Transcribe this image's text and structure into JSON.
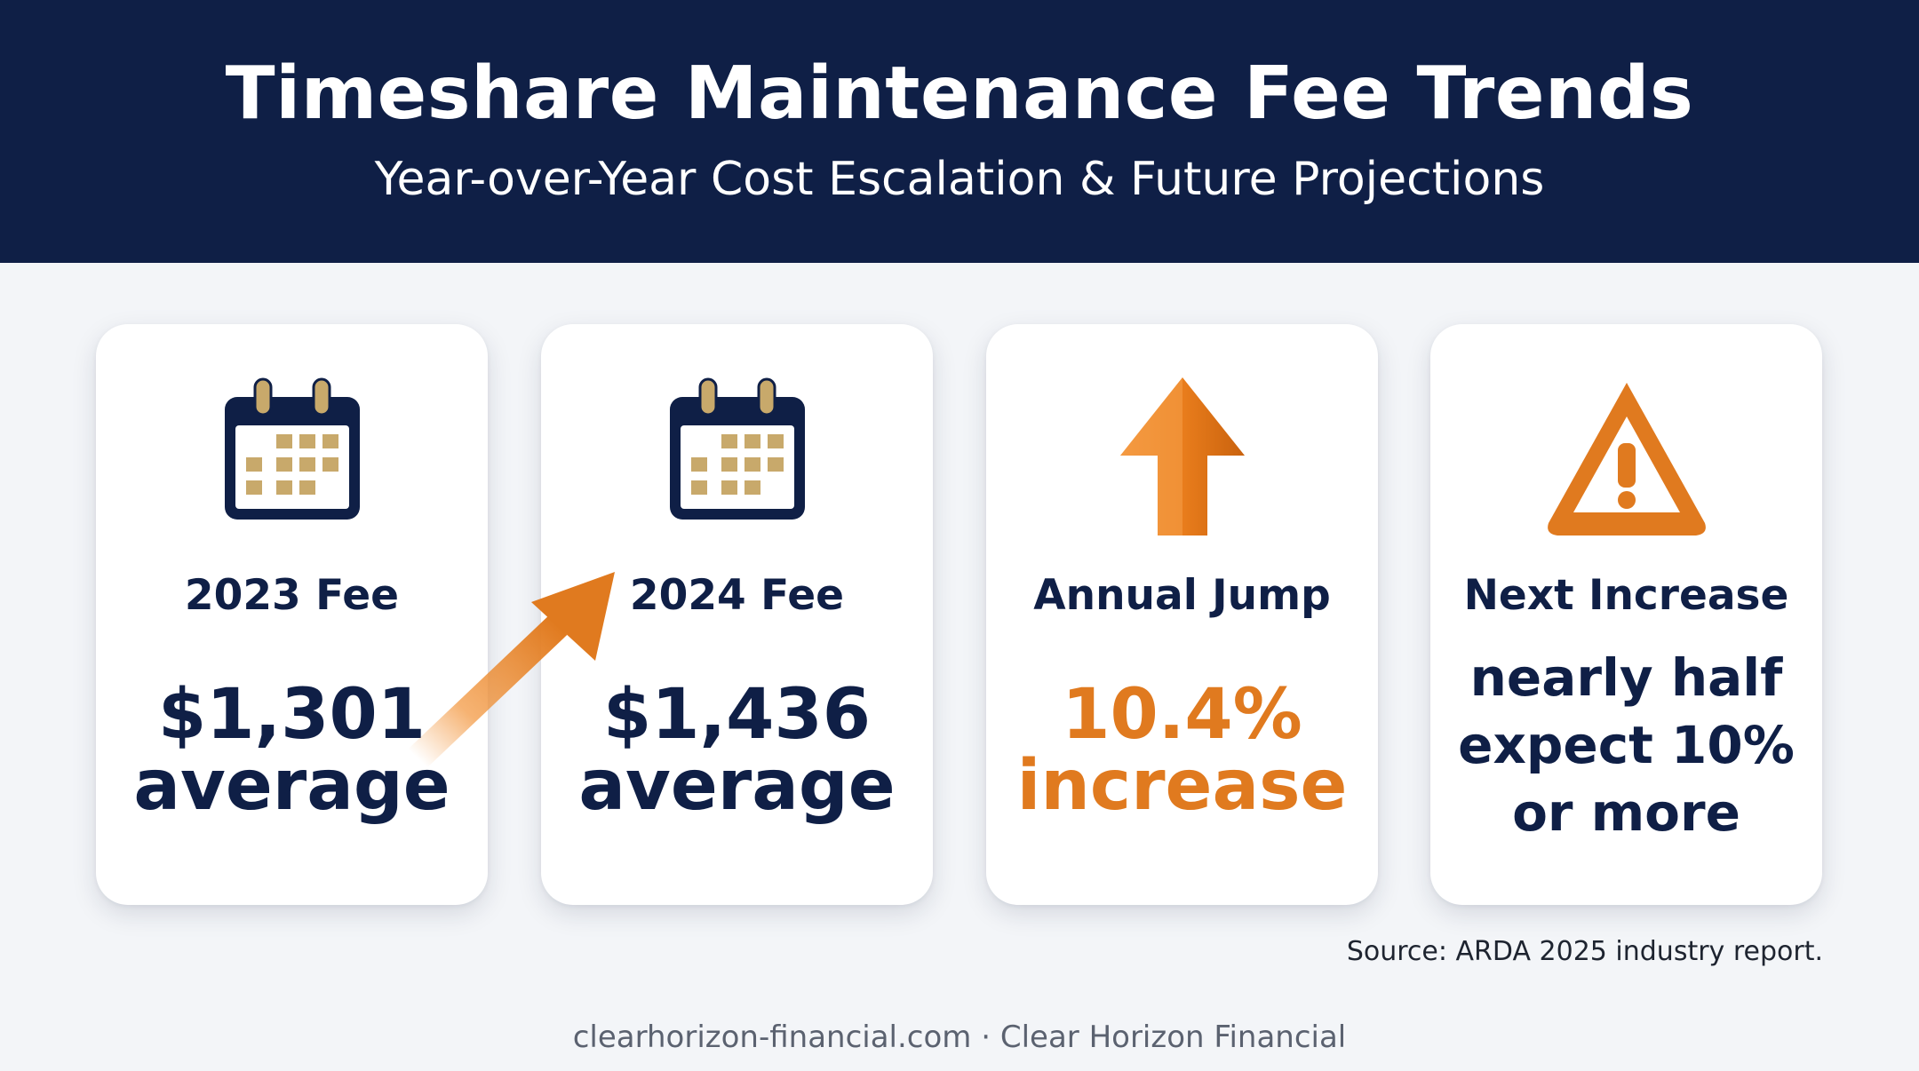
{
  "header": {
    "title": "Timeshare Maintenance Fee Trends",
    "subtitle": "Year-over-Year Cost Escalation & Future Projections"
  },
  "cards": [
    {
      "icon": "calendar-icon",
      "label": "2023 Fee",
      "value_line1": "$1,301",
      "value_line2": "average"
    },
    {
      "icon": "calendar-icon",
      "label": "2024 Fee",
      "value_line1": "$1,436",
      "value_line2": "average"
    },
    {
      "icon": "up-arrow-icon",
      "label": "Annual Jump",
      "value_line1": "10.4%",
      "value_line2": "increase"
    },
    {
      "icon": "warning-icon",
      "label": "Next Increase",
      "value_line1": "nearly half",
      "value_line2": "expect 10%",
      "value_line3": "or more"
    }
  ],
  "source": "Source: ARDA 2025 industry report.",
  "footer": "clearhorizon-financial.com · Clear Horizon Financial",
  "colors": {
    "navy": "#0f1f46",
    "orange": "#e07a1f",
    "gold": "#c8a96b",
    "background": "#f3f5f8"
  }
}
